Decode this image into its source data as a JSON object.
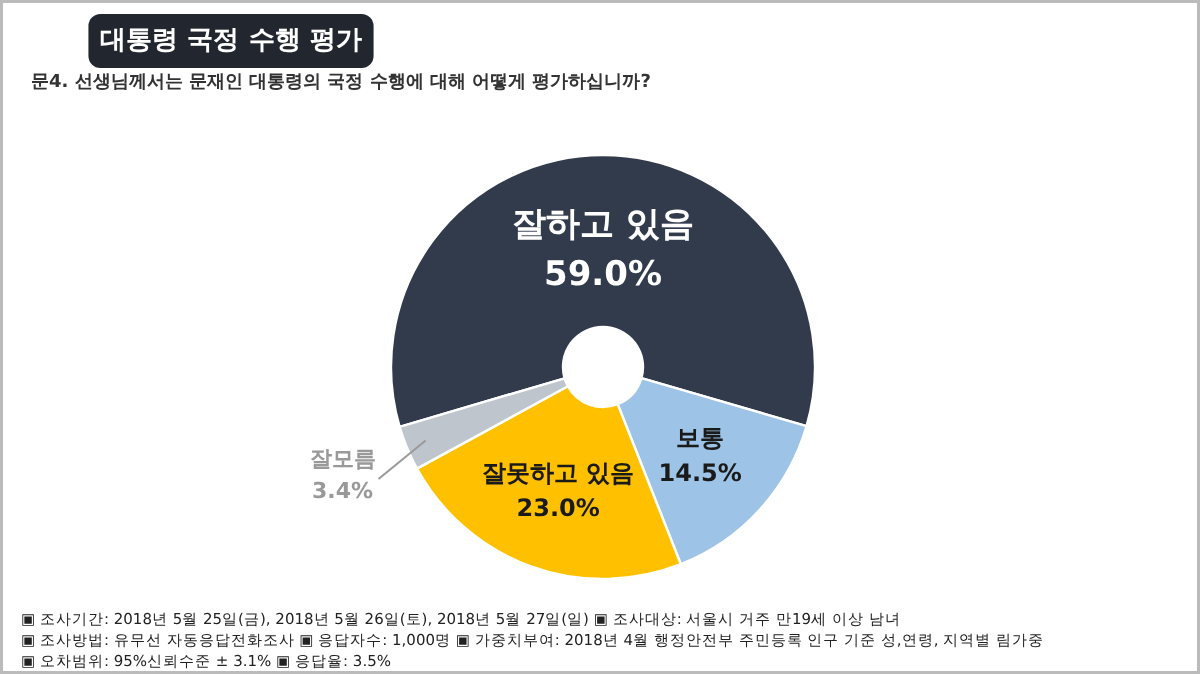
{
  "chart_data": {
    "type": "donut",
    "title": "대통령 국정 수행 평가",
    "subtitle": "문4. 선생님께서는 문재인 대통령의 국정 수행에 대해 어떻게 평가하십니까?",
    "categories": [
      "잘하고 있음",
      "보통",
      "잘못하고 있음",
      "잘모름"
    ],
    "values": [
      59.0,
      14.5,
      23.0,
      3.4
    ],
    "colors": [
      "#323b4c",
      "#9dc3e6",
      "#ffc000",
      "#bfc5cd"
    ],
    "value_labels": [
      "59.0%",
      "14.5%",
      "23.0%",
      "3.4%"
    ],
    "annotations": [
      "▣ 조사기간: 2018년 5월 25일(금), 2018년 5월 26일(토), 2018년 5월 27일(일) ▣ 조사대상: 서울시 거주 만19세 이상 남녀",
      "▣ 조사방법: 유무선 자동응답전화조사 ▣ 응답자수: 1,000명 ▣ 가중치부여: 2018년 4월 행정안전부 주민등록 인구 기준 성,연령, 지역별 림가중",
      "▣ 오차범위: 95%신뢰수준 ± 3.1% ▣ 응답율: 3.5%"
    ]
  }
}
